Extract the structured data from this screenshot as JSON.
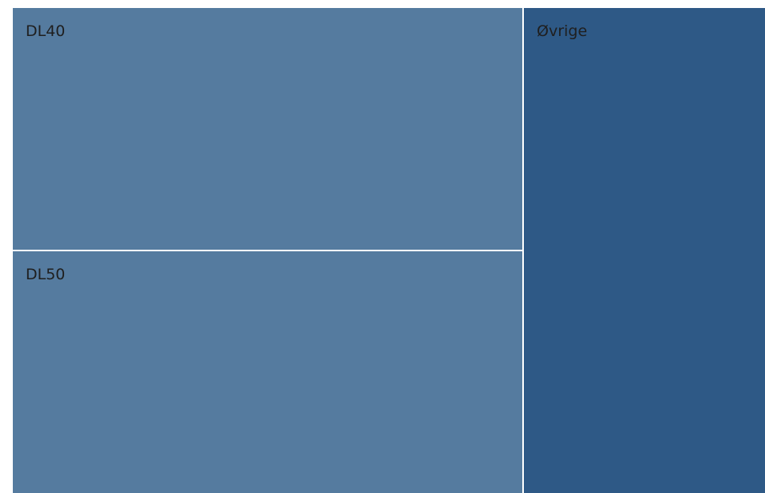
{
  "chart_data": {
    "type": "treemap",
    "title": "",
    "tiles": [
      {
        "label": "DL40",
        "value": 1.0,
        "color": "#557b9f"
      },
      {
        "label": "DL50",
        "value": 1.0,
        "color": "#557b9f"
      },
      {
        "label": "Øvrige",
        "value": 0.95,
        "color": "#2e5986"
      }
    ],
    "border_color": "#ffffff",
    "label_color": "#1f1f1f"
  }
}
